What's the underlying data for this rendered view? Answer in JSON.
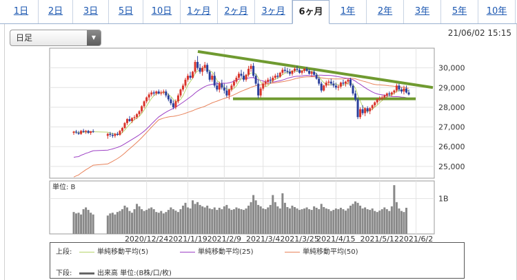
{
  "tabs": [
    {
      "label": "1日"
    },
    {
      "label": "2日"
    },
    {
      "label": "3日"
    },
    {
      "label": "5日"
    },
    {
      "label": "10日"
    },
    {
      "label": "1ヶ月"
    },
    {
      "label": "2ヶ月"
    },
    {
      "label": "3ヶ月"
    },
    {
      "label": "6ヶ月",
      "active": true
    },
    {
      "label": "1年"
    },
    {
      "label": "2年"
    },
    {
      "label": "3年"
    },
    {
      "label": "5年"
    },
    {
      "label": "10年"
    }
  ],
  "selector": {
    "value": "日足"
  },
  "timestamp": "21/06/02 15:15",
  "legend": {
    "upper_label": "上段:",
    "lower_label": "下段:",
    "ma5": "単純移動平均(5)",
    "ma25": "単純移動平均(25)",
    "ma50": "単純移動平均(50)",
    "volume": "出来高 単位:(B株/口/枚)"
  },
  "colors": {
    "up": "#d9342b",
    "down": "#2a3f9c",
    "ma5": "#b6d46a",
    "ma25": "#9c3fc4",
    "ma50": "#e8825a",
    "trend": "#6f9a30",
    "volume": "#888888"
  },
  "chart_data": {
    "type": "candlestick",
    "price_axis": {
      "ticks": [
        25000,
        26000,
        27000,
        28000,
        29000,
        30000
      ],
      "tick_labels": [
        "25,000",
        "26,000",
        "27,000",
        "28,000",
        "29,000",
        "30,000"
      ],
      "ylim": [
        24400,
        31000
      ]
    },
    "volume_axis": {
      "unit_label": "単位: B",
      "ticks": [
        1
      ],
      "tick_labels": [
        "1B"
      ],
      "ylim": [
        0,
        1.5
      ]
    },
    "date_labels": [
      "2020/12/24",
      "2021/1/19",
      "2021/2/9",
      "2021/3/4",
      "2021/3/25",
      "2021/4/15",
      "2021/5/12",
      "2021/6/2"
    ],
    "date_label_index": [
      25,
      42,
      57,
      73,
      88,
      103,
      121,
      136
    ],
    "gap_after_index": 8,
    "candles": [
      [
        26700,
        26800,
        26600,
        26760
      ],
      [
        26760,
        26850,
        26650,
        26720
      ],
      [
        26700,
        26800,
        26600,
        26650
      ],
      [
        26650,
        26850,
        26600,
        26800
      ],
      [
        26800,
        26900,
        26700,
        26750
      ],
      [
        26750,
        26850,
        26650,
        26800
      ],
      [
        26800,
        26850,
        26650,
        26700
      ],
      [
        26700,
        26800,
        26600,
        26780
      ],
      [
        26780,
        26880,
        26700,
        26750
      ],
      [
        26550,
        26700,
        26400,
        26650
      ],
      [
        26650,
        26750,
        26500,
        26600
      ],
      [
        26600,
        26700,
        26450,
        26550
      ],
      [
        26550,
        26700,
        26450,
        26650
      ],
      [
        26650,
        26750,
        26550,
        26600
      ],
      [
        26600,
        26850,
        26550,
        26800
      ],
      [
        26800,
        27000,
        26700,
        26950
      ],
      [
        26950,
        27250,
        26900,
        27200
      ],
      [
        27200,
        27450,
        27100,
        27400
      ],
      [
        27400,
        27550,
        27250,
        27300
      ],
      [
        27300,
        27500,
        27200,
        27450
      ],
      [
        27450,
        27600,
        27350,
        27500
      ],
      [
        27500,
        27700,
        27400,
        27650
      ],
      [
        27650,
        27850,
        27550,
        27800
      ],
      [
        27800,
        28100,
        27700,
        28050
      ],
      [
        28050,
        28350,
        27950,
        28300
      ],
      [
        28300,
        28550,
        28200,
        28500
      ],
      [
        28500,
        28750,
        28350,
        28650
      ],
      [
        28650,
        28850,
        28550,
        28750
      ],
      [
        28750,
        28850,
        28600,
        28700
      ],
      [
        28700,
        28850,
        28600,
        28800
      ],
      [
        28800,
        28900,
        28650,
        28700
      ],
      [
        28700,
        28850,
        28600,
        28750
      ],
      [
        28750,
        28900,
        28650,
        28800
      ],
      [
        28800,
        28900,
        28500,
        28600
      ],
      [
        28600,
        28700,
        28300,
        28400
      ],
      [
        28400,
        28500,
        28100,
        28200
      ],
      [
        28200,
        28350,
        27900,
        28000
      ],
      [
        28000,
        28400,
        27900,
        28300
      ],
      [
        28300,
        28700,
        28200,
        28600
      ],
      [
        28600,
        28950,
        28500,
        28900
      ],
      [
        28900,
        29200,
        28800,
        29100
      ],
      [
        29100,
        29500,
        29000,
        29400
      ],
      [
        29400,
        29700,
        29300,
        29600
      ],
      [
        29600,
        29800,
        29400,
        29500
      ],
      [
        29500,
        29850,
        29450,
        29800
      ],
      [
        29800,
        30400,
        29700,
        30300
      ],
      [
        30300,
        30600,
        29900,
        30000
      ],
      [
        30000,
        30200,
        29700,
        29800
      ],
      [
        29800,
        30100,
        29600,
        30000
      ],
      [
        30000,
        30300,
        29850,
        30150
      ],
      [
        30150,
        30250,
        29700,
        29800
      ],
      [
        29800,
        29900,
        29300,
        29400
      ],
      [
        29400,
        29700,
        29300,
        29600
      ],
      [
        29600,
        29800,
        29000,
        29100
      ],
      [
        29100,
        29300,
        28800,
        28900
      ],
      [
        28900,
        29300,
        28750,
        29200
      ],
      [
        29200,
        29400,
        28900,
        29000
      ],
      [
        29000,
        29200,
        28700,
        28850
      ],
      [
        28850,
        29100,
        28500,
        28600
      ],
      [
        28600,
        28950,
        28400,
        28900
      ],
      [
        28900,
        29200,
        28800,
        29100
      ],
      [
        29100,
        29400,
        29000,
        29300
      ],
      [
        29300,
        29600,
        29200,
        29500
      ],
      [
        29500,
        29800,
        29400,
        29700
      ],
      [
        29700,
        29900,
        29500,
        29600
      ],
      [
        29600,
        29800,
        29300,
        29400
      ],
      [
        29400,
        29700,
        29300,
        29650
      ],
      [
        29650,
        30100,
        29550,
        29950
      ],
      [
        29950,
        30200,
        29800,
        30100
      ],
      [
        30100,
        30250,
        29500,
        29600
      ],
      [
        29600,
        29700,
        29100,
        29200
      ],
      [
        29200,
        29400,
        28450,
        28600
      ],
      [
        28600,
        29050,
        28500,
        28950
      ],
      [
        28950,
        29300,
        28850,
        29200
      ],
      [
        29200,
        29400,
        29050,
        29300
      ],
      [
        29300,
        29500,
        29150,
        29400
      ],
      [
        29400,
        29550,
        29200,
        29350
      ],
      [
        29350,
        29600,
        29250,
        29500
      ],
      [
        29500,
        29700,
        29400,
        29600
      ],
      [
        29600,
        29750,
        29450,
        29550
      ],
      [
        29550,
        29800,
        29500,
        29750
      ],
      [
        29750,
        30000,
        29650,
        29900
      ],
      [
        29900,
        30050,
        29750,
        29850
      ],
      [
        29850,
        30000,
        29700,
        29800
      ],
      [
        29800,
        29950,
        29600,
        29700
      ],
      [
        29700,
        29900,
        29600,
        29850
      ],
      [
        29850,
        30050,
        29750,
        29950
      ],
      [
        29950,
        30100,
        29800,
        29900
      ],
      [
        29900,
        30000,
        29700,
        29750
      ],
      [
        29750,
        29900,
        29650,
        29850
      ],
      [
        29850,
        30000,
        29750,
        29950
      ],
      [
        29950,
        30050,
        29800,
        29850
      ],
      [
        29850,
        29950,
        29650,
        29700
      ],
      [
        29700,
        29850,
        29550,
        29800
      ],
      [
        29800,
        29900,
        29600,
        29650
      ],
      [
        29650,
        29750,
        29400,
        29450
      ],
      [
        29450,
        29550,
        29100,
        29200
      ],
      [
        29200,
        29300,
        28750,
        28850
      ],
      [
        28850,
        29150,
        28800,
        29100
      ],
      [
        29100,
        29350,
        29000,
        29250
      ],
      [
        29250,
        29400,
        29100,
        29300
      ],
      [
        29300,
        29450,
        29100,
        29200
      ],
      [
        29200,
        29350,
        29000,
        29100
      ],
      [
        29100,
        29250,
        28900,
        29000
      ],
      [
        29000,
        29150,
        28850,
        29050
      ],
      [
        29050,
        29300,
        28950,
        29250
      ],
      [
        29250,
        29400,
        29100,
        29200
      ],
      [
        29200,
        29350,
        29050,
        29300
      ],
      [
        29300,
        29450,
        29150,
        29400
      ],
      [
        29400,
        29500,
        29000,
        29100
      ],
      [
        29100,
        29200,
        28600,
        28700
      ],
      [
        28700,
        28850,
        28300,
        28400
      ],
      [
        28400,
        28500,
        27400,
        27500
      ],
      [
        27500,
        28000,
        27400,
        27900
      ],
      [
        27900,
        28100,
        27600,
        27700
      ],
      [
        27700,
        28000,
        27550,
        27950
      ],
      [
        27950,
        28050,
        27700,
        27800
      ],
      [
        27800,
        28000,
        27650,
        27950
      ],
      [
        27950,
        28150,
        27850,
        28100
      ],
      [
        28100,
        28300,
        28000,
        28250
      ],
      [
        28250,
        28450,
        28150,
        28400
      ],
      [
        28400,
        28550,
        28300,
        28450
      ],
      [
        28450,
        28600,
        28350,
        28500
      ],
      [
        28500,
        28650,
        28400,
        28600
      ],
      [
        28600,
        28750,
        28500,
        28700
      ],
      [
        28700,
        28800,
        28550,
        28650
      ],
      [
        28650,
        28800,
        28550,
        28750
      ],
      [
        28750,
        28900,
        28650,
        28850
      ],
      [
        28850,
        29200,
        28750,
        29100
      ],
      [
        29100,
        29200,
        28800,
        28900
      ],
      [
        28900,
        29000,
        28700,
        28800
      ],
      [
        28800,
        29100,
        28650,
        28950
      ],
      [
        28950,
        29100,
        28700,
        28750
      ],
      [
        28750,
        28900,
        28600,
        28650
      ]
    ],
    "volume": [
      0.62,
      0.58,
      0.6,
      0.55,
      0.7,
      0.75,
      0.68,
      0.6,
      0.55,
      0.52,
      0.58,
      0.6,
      0.55,
      0.62,
      0.65,
      0.7,
      0.8,
      0.75,
      0.65,
      0.6,
      0.7,
      0.85,
      0.78,
      0.7,
      0.65,
      0.68,
      0.72,
      0.75,
      0.7,
      0.62,
      0.6,
      0.65,
      0.58,
      0.62,
      0.68,
      0.75,
      0.7,
      0.66,
      0.62,
      0.7,
      0.8,
      0.88,
      0.75,
      0.72,
      0.95,
      0.85,
      0.9,
      0.82,
      0.78,
      0.75,
      0.8,
      0.72,
      0.7,
      0.75,
      0.68,
      0.74,
      0.7,
      0.78,
      0.82,
      0.72,
      0.68,
      0.7,
      0.75,
      0.72,
      0.7,
      0.68,
      0.72,
      0.8,
      0.9,
      1.1,
      0.95,
      0.82,
      0.78,
      0.72,
      0.7,
      0.75,
      0.82,
      1.1,
      0.9,
      0.78,
      0.72,
      1.15,
      0.88,
      0.76,
      0.72,
      0.8,
      0.76,
      0.72,
      0.68,
      0.7,
      0.72,
      0.75,
      0.7,
      0.68,
      0.78,
      0.74,
      0.7,
      0.85,
      0.76,
      0.72,
      0.7,
      0.65,
      0.68,
      0.72,
      0.7,
      0.74,
      0.7,
      0.66,
      0.72,
      0.8,
      0.85,
      0.92,
      0.88,
      0.8,
      0.72,
      0.75,
      0.7,
      0.68,
      0.72,
      0.65,
      0.62,
      0.66,
      0.7,
      0.75,
      0.7,
      0.65,
      0.78,
      1.38,
      0.9,
      0.72,
      0.65,
      0.62,
      0.74
    ]
  }
}
